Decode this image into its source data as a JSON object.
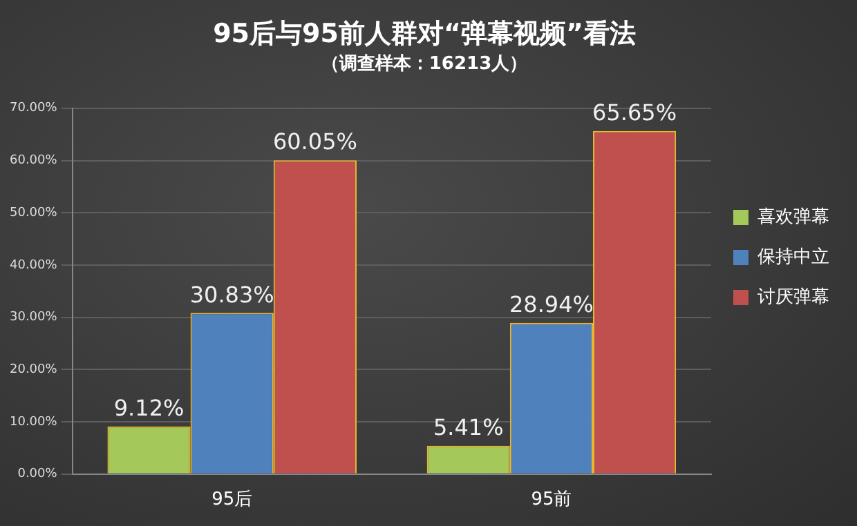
{
  "chart_data": {
    "type": "bar",
    "title": "95后与95前人群对“弹幕视频”看法",
    "subtitle": "（调查样本：16213人）",
    "categories": [
      "95后",
      "95前"
    ],
    "series": [
      {
        "name": "喜欢弹幕",
        "color": "#a4c95a",
        "values": [
          9.12,
          5.41
        ],
        "value_labels": [
          "9.12%",
          "5.41%"
        ]
      },
      {
        "name": "保持中立",
        "color": "#4f81bd",
        "values": [
          30.83,
          28.94
        ],
        "value_labels": [
          "30.83%",
          "28.94%"
        ]
      },
      {
        "name": "讨厌弹幕",
        "color": "#c0504d",
        "values": [
          60.05,
          65.65
        ],
        "value_labels": [
          "60.05%",
          "65.65%"
        ]
      }
    ],
    "ylim": [
      0,
      70
    ],
    "yticks": [
      {
        "value": 0,
        "label": "0.00%"
      },
      {
        "value": 10,
        "label": "10.00%"
      },
      {
        "value": 20,
        "label": "20.00%"
      },
      {
        "value": 30,
        "label": "30.00%"
      },
      {
        "value": 40,
        "label": "40.00%"
      },
      {
        "value": 50,
        "label": "50.00%"
      },
      {
        "value": 60,
        "label": "60.00%"
      },
      {
        "value": 70,
        "label": "70.00%"
      }
    ],
    "grid": "y",
    "legend": "right"
  }
}
